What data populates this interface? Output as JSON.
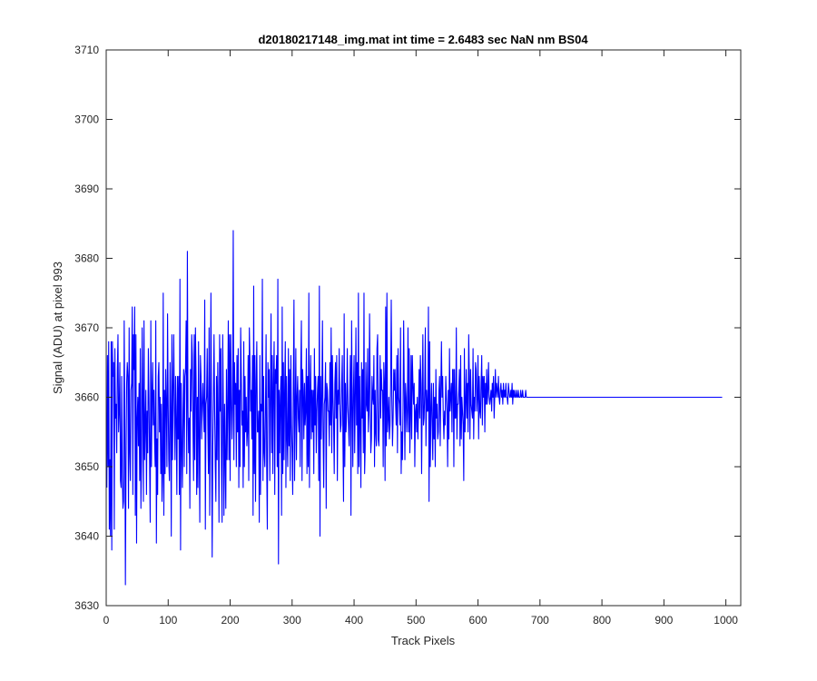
{
  "chart_data": {
    "type": "line",
    "title": "d20180217148_img.mat int time = 2.6483 sec  NaN nm BS04",
    "xlabel": "Track Pixels",
    "ylabel": "Signal (ADU) at pixel 993",
    "xlim": [
      0,
      1024
    ],
    "ylim": [
      3630,
      3710
    ],
    "xticks": [
      0,
      100,
      200,
      300,
      400,
      500,
      600,
      700,
      800,
      900,
      1000
    ],
    "yticks": [
      3630,
      3640,
      3650,
      3660,
      3670,
      3680,
      3690,
      3700,
      3710
    ],
    "grid": false,
    "line_color": "#0000ff",
    "n_points": 1024,
    "series": [
      {
        "values": [
          3647,
          3666,
          3650,
          3668,
          3641,
          3651,
          3640,
          3668,
          3638,
          3668,
          3663,
          3665,
          3641,
          3667,
          3657,
          3659,
          3652,
          3664,
          3669,
          3655,
          3658,
          3665,
          3648,
          3647,
          3663,
          3649,
          3644,
          3645,
          3671,
          3657,
          3633,
          3651,
          3662,
          3665,
          3663,
          3644,
          3670,
          3652,
          3648,
          3661,
          3662,
          3673,
          3646,
          3669,
          3664,
          3673,
          3643,
          3669,
          3639,
          3657,
          3660,
          3653,
          3662,
          3648,
          3667,
          3644,
          3651,
          3670,
          3660,
          3645,
          3671,
          3651,
          3656,
          3661,
          3646,
          3658,
          3652,
          3667,
          3660,
          3651,
          3642,
          3671,
          3650,
          3660,
          3665,
          3656,
          3661,
          3654,
          3650,
          3671,
          3639,
          3654,
          3646,
          3663,
          3665,
          3655,
          3660,
          3649,
          3659,
          3645,
          3649,
          3675,
          3643,
          3661,
          3649,
          3664,
          3659,
          3650,
          3672,
          3659,
          3651,
          3648,
          3665,
          3658,
          3640,
          3669,
          3651,
          3661,
          3669,
          3658,
          3651,
          3663,
          3657,
          3646,
          3663,
          3654,
          3663,
          3646,
          3677,
          3638,
          3662,
          3653,
          3647,
          3658,
          3664,
          3650,
          3663,
          3664,
          3671,
          3649,
          3681,
          3658,
          3652,
          3657,
          3644,
          3664,
          3658,
          3669,
          3666,
          3656,
          3648,
          3669,
          3651,
          3670,
          3663,
          3646,
          3660,
          3647,
          3668,
          3654,
          3642,
          3666,
          3663,
          3654,
          3659,
          3662,
          3658,
          3655,
          3674,
          3641,
          3659,
          3660,
          3667,
          3656,
          3649,
          3670,
          3643,
          3659,
          3675,
          3655,
          3637,
          3653,
          3660,
          3669,
          3658,
          3650,
          3645,
          3663,
          3651,
          3665,
          3656,
          3642,
          3669,
          3658,
          3667,
          3650,
          3642,
          3669,
          3659,
          3643,
          3659,
          3651,
          3644,
          3664,
          3651,
          3658,
          3671,
          3651,
          3669,
          3648,
          3669,
          3660,
          3654,
          3659,
          3684,
          3651,
          3665,
          3659,
          3662,
          3650,
          3666,
          3655,
          3667,
          3647,
          3661,
          3650,
          3670,
          3663,
          3656,
          3658,
          3647,
          3668,
          3650,
          3663,
          3655,
          3660,
          3653,
          3655,
          3666,
          3648,
          3670,
          3665,
          3658,
          3661,
          3654,
          3666,
          3643,
          3676,
          3649,
          3666,
          3645,
          3662,
          3668,
          3655,
          3655,
          3658,
          3642,
          3666,
          3646,
          3659,
          3658,
          3677,
          3648,
          3663,
          3652,
          3650,
          3658,
          3669,
          3650,
          3641,
          3665,
          3660,
          3664,
          3648,
          3660,
          3672,
          3652,
          3666,
          3649,
          3662,
          3668,
          3646,
          3664,
          3662,
          3666,
          3650,
          3677,
          3636,
          3661,
          3652,
          3660,
          3663,
          3643,
          3673,
          3649,
          3665,
          3651,
          3661,
          3668,
          3647,
          3663,
          3654,
          3650,
          3667,
          3653,
          3664,
          3648,
          3666,
          3656,
          3652,
          3646,
          3662,
          3674,
          3648,
          3658,
          3667,
          3651,
          3660,
          3663,
          3657,
          3655,
          3661,
          3650,
          3664,
          3671,
          3648,
          3664,
          3661,
          3654,
          3662,
          3656,
          3658,
          3667,
          3649,
          3663,
          3650,
          3675,
          3647,
          3660,
          3666,
          3654,
          3661,
          3655,
          3661,
          3649,
          3667,
          3656,
          3663,
          3652,
          3658,
          3661,
          3663,
          3648,
          3676,
          3640,
          3663,
          3654,
          3660,
          3671,
          3655,
          3647,
          3659,
          3660,
          3665,
          3644,
          3662,
          3661,
          3658,
          3658,
          3653,
          3665,
          3656,
          3670,
          3652,
          3666,
          3660,
          3656,
          3649,
          3662,
          3665,
          3657,
          3666,
          3648,
          3661,
          3659,
          3667,
          3659,
          3655,
          3656,
          3662,
          3666,
          3654,
          3645,
          3672,
          3650,
          3662,
          3655,
          3658,
          3667,
          3659,
          3656,
          3653,
          3660,
          3666,
          3643,
          3671,
          3660,
          3650,
          3661,
          3666,
          3652,
          3660,
          3670,
          3656,
          3665,
          3649,
          3675,
          3650,
          3663,
          3656,
          3647,
          3665,
          3657,
          3664,
          3652,
          3675,
          3649,
          3653,
          3665,
          3659,
          3658,
          3667,
          3655,
          3658,
          3672,
          3661,
          3652,
          3654,
          3663,
          3660,
          3659,
          3666,
          3650,
          3661,
          3655,
          3653,
          3667,
          3669,
          3654,
          3653,
          3658,
          3666,
          3657,
          3664,
          3661,
          3661,
          3650,
          3665,
          3662,
          3648,
          3673,
          3653,
          3675,
          3655,
          3657,
          3660,
          3654,
          3656,
          3662,
          3674,
          3660,
          3653,
          3657,
          3664,
          3661,
          3664,
          3659,
          3656,
          3666,
          3652,
          3667,
          3660,
          3659,
          3656,
          3670,
          3649,
          3655,
          3651,
          3658,
          3671,
          3661,
          3651,
          3662,
          3660,
          3655,
          3658,
          3670,
          3655,
          3667,
          3652,
          3657,
          3666,
          3654,
          3666,
          3662,
          3659,
          3662,
          3650,
          3658,
          3659,
          3655,
          3660,
          3654,
          3658,
          3664,
          3657,
          3666,
          3662,
          3649,
          3660,
          3669,
          3656,
          3657,
          3661,
          3670,
          3653,
          3661,
          3658,
          3658,
          3673,
          3645,
          3668,
          3650,
          3658,
          3662,
          3656,
          3651,
          3662,
          3654,
          3660,
          3650,
          3664,
          3657,
          3659,
          3654,
          3655,
          3661,
          3663,
          3653,
          3661,
          3668,
          3660,
          3663,
          3657,
          3654,
          3658,
          3656,
          3663,
          3660,
          3658,
          3650,
          3661,
          3654,
          3667,
          3658,
          3660,
          3662,
          3655,
          3664,
          3664,
          3650,
          3664,
          3657,
          3657,
          3670,
          3654,
          3659,
          3659,
          3661,
          3664,
          3653,
          3666,
          3654,
          3660,
          3658,
          3656,
          3648,
          3667,
          3655,
          3659,
          3664,
          3657,
          3662,
          3655,
          3669,
          3663,
          3654,
          3664,
          3659,
          3658,
          3657,
          3667,
          3654,
          3660,
          3658,
          3665,
          3664,
          3658,
          3660,
          3666,
          3654,
          3663,
          3658,
          3657,
          3662,
          3666,
          3656,
          3663,
          3660,
          3663,
          3655,
          3662,
          3659,
          3664,
          3659,
          3661,
          3665,
          3660,
          3659,
          3660,
          3661,
          3658,
          3662,
          3660,
          3663,
          3657,
          3660,
          3664,
          3660,
          3662,
          3661,
          3660,
          3663,
          3660,
          3659,
          3661,
          3662,
          3660,
          3661,
          3659,
          3662,
          3660,
          3661,
          3660,
          3662,
          3660,
          3660,
          3659,
          3662,
          3661,
          3660,
          3660,
          3661,
          3660,
          3662,
          3659,
          3661,
          3660,
          3661,
          3660,
          3660,
          3661,
          3660,
          3660,
          3661,
          3660,
          3660,
          3660,
          3661,
          3660,
          3660,
          3661,
          3660,
          3660,
          3660,
          3660,
          3661,
          3660,
          3660,
          3660,
          3660,
          3660,
          3660,
          3660,
          3660,
          3660,
          3660,
          3660,
          3660,
          3660,
          3660,
          3660,
          3660,
          3660,
          3660,
          3660,
          3660,
          3660,
          3660,
          3660,
          3660,
          3660,
          3660,
          3660,
          3660,
          3660,
          3660,
          3660,
          3660,
          3660,
          3660,
          3660,
          3660,
          3660,
          3660,
          3660,
          3660,
          3660,
          3660,
          3660,
          3660,
          3660,
          3660,
          3660,
          3660,
          3660,
          3660,
          3660,
          3660,
          3660,
          3660,
          3660,
          3660,
          3660,
          3660,
          3660,
          3660,
          3660,
          3660,
          3660,
          3660,
          3660,
          3660,
          3660,
          3660,
          3660,
          3660,
          3660,
          3660,
          3660,
          3660,
          3660,
          3660,
          3660,
          3660,
          3660,
          3660,
          3660,
          3660,
          3660,
          3660,
          3660,
          3660,
          3660,
          3660,
          3660,
          3660,
          3660,
          3660,
          3660,
          3660,
          3660,
          3660,
          3660,
          3660,
          3660,
          3660,
          3660,
          3660,
          3660,
          3660,
          3660,
          3660,
          3660,
          3660,
          3660,
          3660,
          3660,
          3660,
          3660,
          3660,
          3660,
          3660,
          3660,
          3660,
          3660,
          3660,
          3660,
          3660,
          3660,
          3660,
          3660,
          3660,
          3660,
          3660,
          3660,
          3660,
          3660,
          3660,
          3660,
          3660,
          3660,
          3660,
          3660,
          3660,
          3660,
          3660,
          3660,
          3660,
          3660,
          3660,
          3660,
          3660,
          3660,
          3660,
          3660,
          3660,
          3660,
          3660,
          3660,
          3660,
          3660,
          3660,
          3660,
          3660,
          3660,
          3660,
          3660,
          3660,
          3660,
          3660,
          3660,
          3660,
          3660,
          3660,
          3660,
          3660,
          3660,
          3660,
          3660,
          3660,
          3660,
          3660,
          3660,
          3660,
          3660,
          3660,
          3660,
          3660,
          3660,
          3660,
          3660,
          3660,
          3660,
          3660,
          3660,
          3660,
          3660,
          3660,
          3660,
          3660,
          3660,
          3660,
          3660,
          3660,
          3660,
          3660,
          3660,
          3660,
          3660,
          3660,
          3660,
          3660,
          3660,
          3660,
          3660,
          3660,
          3660,
          3660,
          3660,
          3660,
          3660,
          3660,
          3660,
          3660,
          3660,
          3660,
          3660,
          3660,
          3660,
          3660,
          3660,
          3660,
          3660,
          3660,
          3660,
          3660,
          3660,
          3660,
          3660,
          3660,
          3660,
          3660,
          3660,
          3660,
          3660,
          3660,
          3660,
          3660,
          3660,
          3660,
          3660,
          3660,
          3660,
          3660,
          3660,
          3660,
          3660,
          3660,
          3660,
          3660,
          3660,
          3660,
          3660,
          3660,
          3660,
          3660,
          3660,
          3660,
          3660,
          3660,
          3660,
          3660,
          3660,
          3660,
          3660,
          3660,
          3660,
          3660,
          3660,
          3660,
          3660,
          3660,
          3660,
          3660,
          3660,
          3660,
          3660,
          3660,
          3660,
          3660,
          3660,
          3660,
          3660,
          3660,
          3660,
          3660,
          3660,
          3660,
          3660,
          3660,
          3660,
          3660,
          3660,
          3660,
          3660,
          3660,
          3660,
          3660,
          3660,
          3660,
          3660,
          3660,
          3660,
          3660,
          3660,
          3660,
          3660,
          3660,
          3660,
          3660,
          3660,
          3660,
          3660
        ]
      }
    ]
  }
}
